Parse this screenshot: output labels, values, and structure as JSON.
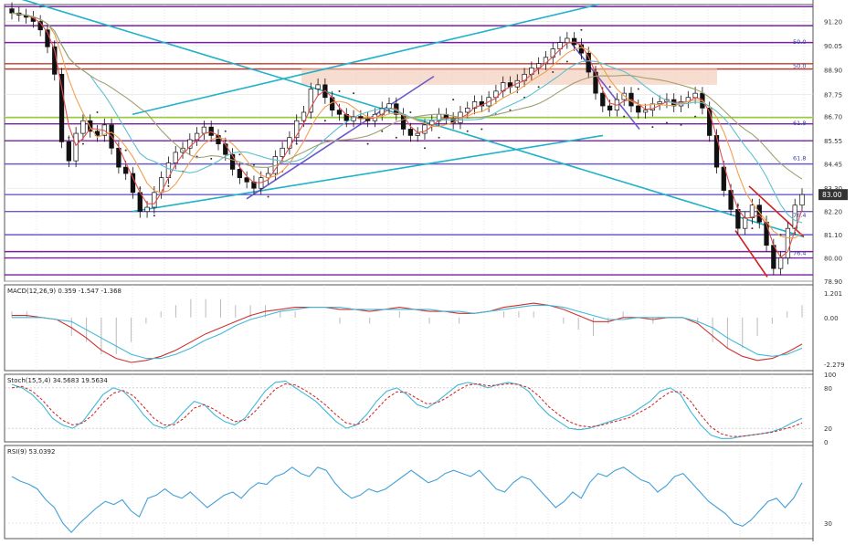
{
  "chart_data": [
    {
      "type": "candlestick",
      "panel": "price",
      "ylim": [
        78.9,
        92.0
      ],
      "grid": true,
      "price_scale": [
        "91.20",
        "90.05",
        "88.90",
        "87.75",
        "86.70",
        "85.55",
        "84.45",
        "83.30",
        "82.20",
        "81.10",
        "80.00",
        "78.90"
      ],
      "current_price": "83.00",
      "fib_labels": [
        {
          "text": "50.0",
          "y": 90.05
        },
        {
          "text": "50.0",
          "y": 88.9
        },
        {
          "text": "61.8",
          "y": 86.2
        },
        {
          "text": "61.8",
          "y": 84.55
        },
        {
          "text": "76.4",
          "y": 81.85
        },
        {
          "text": "76.4",
          "y": 80.05
        }
      ],
      "horizontal_levels": [
        {
          "y": 91.9,
          "color": "#7a1fa2"
        },
        {
          "y": 91.0,
          "color": "#7a1fa2"
        },
        {
          "y": 90.2,
          "color": "#7a1fa2"
        },
        {
          "y": 89.2,
          "color": "#c0392b"
        },
        {
          "y": 88.95,
          "color": "#c0392b"
        },
        {
          "y": 86.65,
          "color": "#9acd32"
        },
        {
          "y": 86.35,
          "color": "#7a1fa2"
        },
        {
          "y": 85.55,
          "color": "#7a1fa2"
        },
        {
          "y": 84.45,
          "color": "#6a5acd"
        },
        {
          "y": 83.0,
          "color": "#6a5acd"
        },
        {
          "y": 82.2,
          "color": "#6a5acd"
        },
        {
          "y": 81.1,
          "color": "#6a5acd"
        },
        {
          "y": 80.3,
          "color": "#7a1fa2"
        },
        {
          "y": 80.0,
          "color": "#7a1fa2"
        },
        {
          "y": 79.2,
          "color": "#7a1fa2"
        }
      ],
      "close": [
        91.6,
        91.5,
        91.4,
        91.2,
        90.8,
        90.0,
        88.7,
        85.5,
        84.6,
        85.9,
        86.5,
        86.0,
        85.8,
        86.3,
        85.2,
        84.3,
        84.0,
        83.1,
        82.2,
        82.4,
        83.1,
        83.8,
        84.5,
        85.0,
        85.2,
        85.6,
        85.9,
        86.2,
        85.8,
        85.4,
        84.9,
        84.2,
        83.8,
        83.6,
        83.3,
        83.8,
        84.0,
        84.8,
        85.2,
        85.7,
        86.5,
        86.9,
        88.0,
        88.2,
        87.6,
        87.0,
        86.8,
        86.5,
        86.7,
        86.6,
        86.5,
        86.8,
        87.1,
        87.3,
        86.8,
        86.1,
        85.8,
        85.9,
        86.3,
        86.5,
        86.8,
        86.6,
        86.4,
        86.9,
        87.1,
        87.4,
        87.2,
        87.6,
        87.9,
        88.3,
        88.1,
        88.4,
        88.7,
        89.0,
        89.2,
        89.5,
        89.9,
        90.2,
        90.4,
        90.1,
        89.7,
        88.8,
        87.8,
        87.2,
        87.0,
        87.5,
        87.8,
        87.2,
        86.9,
        87.0,
        87.3,
        87.4,
        87.5,
        87.2,
        87.4,
        87.6,
        87.8,
        87.1,
        85.8,
        84.3,
        83.2,
        82.3,
        81.4,
        81.9,
        82.5,
        81.7,
        80.6,
        79.5,
        80.0,
        81.4,
        82.5,
        83.0
      ],
      "indicators": {
        "parabolic_sar": "dots",
        "moving_averages": [
          "#e05050",
          "#f0a050",
          "#60c0d0",
          "#a0a070"
        ],
        "trendlines": [
          "#20b2c8",
          "#20b2c8",
          "#20b2c8",
          "#6a5acd",
          "#6a5acd",
          "#d02020"
        ]
      }
    },
    {
      "type": "line",
      "panel": "macd",
      "title": "MACD(12,26,9) 0.359 -1.547 -1.368",
      "ylim": [
        -2.6,
        1.6
      ],
      "y_ticks": [
        "1.201",
        "0.00",
        "-2.279"
      ],
      "series": [
        {
          "color": "#d03030",
          "values": [
            0.1,
            0.1,
            0.0,
            -0.1,
            -0.5,
            -1.0,
            -1.6,
            -2.0,
            -2.2,
            -2.1,
            -1.9,
            -1.6,
            -1.2,
            -0.8,
            -0.5,
            -0.2,
            0.1,
            0.3,
            0.4,
            0.5,
            0.5,
            0.5,
            0.4,
            0.4,
            0.3,
            0.4,
            0.5,
            0.4,
            0.3,
            0.3,
            0.2,
            0.2,
            0.3,
            0.5,
            0.6,
            0.7,
            0.6,
            0.4,
            0.1,
            -0.2,
            -0.2,
            0.0,
            0.0,
            -0.1,
            0.0,
            0.0,
            -0.3,
            -0.9,
            -1.5,
            -1.9,
            -2.1,
            -2.0,
            -1.7,
            -1.3
          ]
        },
        {
          "color": "#40b8d8",
          "values": [
            0.0,
            0.0,
            0.0,
            -0.1,
            -0.2,
            -0.6,
            -1.0,
            -1.4,
            -1.8,
            -2.0,
            -2.0,
            -1.8,
            -1.5,
            -1.1,
            -0.8,
            -0.4,
            -0.1,
            0.1,
            0.3,
            0.4,
            0.5,
            0.5,
            0.5,
            0.4,
            0.4,
            0.4,
            0.4,
            0.4,
            0.4,
            0.3,
            0.3,
            0.2,
            0.3,
            0.4,
            0.5,
            0.6,
            0.6,
            0.5,
            0.3,
            0.1,
            -0.1,
            -0.1,
            0.0,
            0.0,
            0.0,
            0.0,
            -0.2,
            -0.5,
            -1.0,
            -1.4,
            -1.8,
            -1.9,
            -1.8,
            -1.5
          ]
        }
      ],
      "histogram_color": "#bbbbbb"
    },
    {
      "type": "line",
      "panel": "stochastic",
      "title": "Stoch(15,5,4) 34.5683 19.5634",
      "ylim": [
        0,
        100
      ],
      "y_ticks": [
        "100",
        "80",
        "20",
        "0"
      ],
      "series": [
        {
          "color": "#40b8d8",
          "values": [
            85,
            80,
            70,
            55,
            35,
            25,
            20,
            30,
            50,
            70,
            80,
            75,
            60,
            40,
            25,
            20,
            28,
            45,
            60,
            55,
            40,
            30,
            25,
            35,
            55,
            75,
            88,
            90,
            80,
            70,
            60,
            45,
            30,
            20,
            25,
            40,
            60,
            75,
            80,
            70,
            55,
            50,
            60,
            72,
            84,
            88,
            85,
            80,
            85,
            88,
            85,
            75,
            55,
            40,
            30,
            20,
            18,
            20,
            25,
            30,
            35,
            40,
            50,
            60,
            75,
            80,
            70,
            45,
            25,
            10,
            5,
            5,
            8,
            10,
            12,
            15,
            20,
            28,
            35
          ]
        },
        {
          "color": "#d03030",
          "values": [
            80,
            82,
            75,
            62,
            45,
            32,
            25,
            28,
            40,
            58,
            72,
            76,
            68,
            52,
            35,
            25,
            25,
            35,
            50,
            55,
            48,
            38,
            30,
            32,
            45,
            62,
            78,
            86,
            84,
            76,
            66,
            54,
            40,
            28,
            25,
            32,
            48,
            64,
            74,
            73,
            64,
            56,
            58,
            66,
            76,
            84,
            86,
            83,
            84,
            86,
            85,
            80,
            68,
            52,
            40,
            30,
            24,
            22,
            24,
            28,
            32,
            36,
            44,
            52,
            64,
            74,
            74,
            60,
            40,
            22,
            12,
            8,
            8,
            10,
            12,
            14,
            18,
            22,
            28
          ]
        }
      ],
      "levels": [
        80,
        20
      ]
    },
    {
      "type": "line",
      "panel": "rsi",
      "title": "RSI(9) 53.0392",
      "ylim": [
        20,
        80
      ],
      "y_ticks": [
        "30"
      ],
      "series": [
        {
          "color": "#40a0d8",
          "values": [
            60,
            57,
            55,
            52,
            45,
            40,
            30,
            24,
            30,
            35,
            40,
            44,
            42,
            45,
            38,
            34,
            46,
            48,
            52,
            48,
            46,
            50,
            45,
            40,
            44,
            48,
            50,
            46,
            52,
            56,
            55,
            60,
            62,
            66,
            62,
            60,
            66,
            64,
            56,
            50,
            46,
            48,
            52,
            50,
            52,
            56,
            60,
            64,
            60,
            56,
            58,
            62,
            64,
            62,
            60,
            64,
            58,
            52,
            50,
            56,
            60,
            58,
            52,
            46,
            40,
            44,
            50,
            46,
            56,
            62,
            60,
            64,
            66,
            62,
            58,
            56,
            50,
            54,
            60,
            62,
            56,
            50,
            44,
            40,
            36,
            30,
            28,
            32,
            38,
            44,
            46,
            40,
            46,
            56
          ]
        }
      ]
    }
  ]
}
